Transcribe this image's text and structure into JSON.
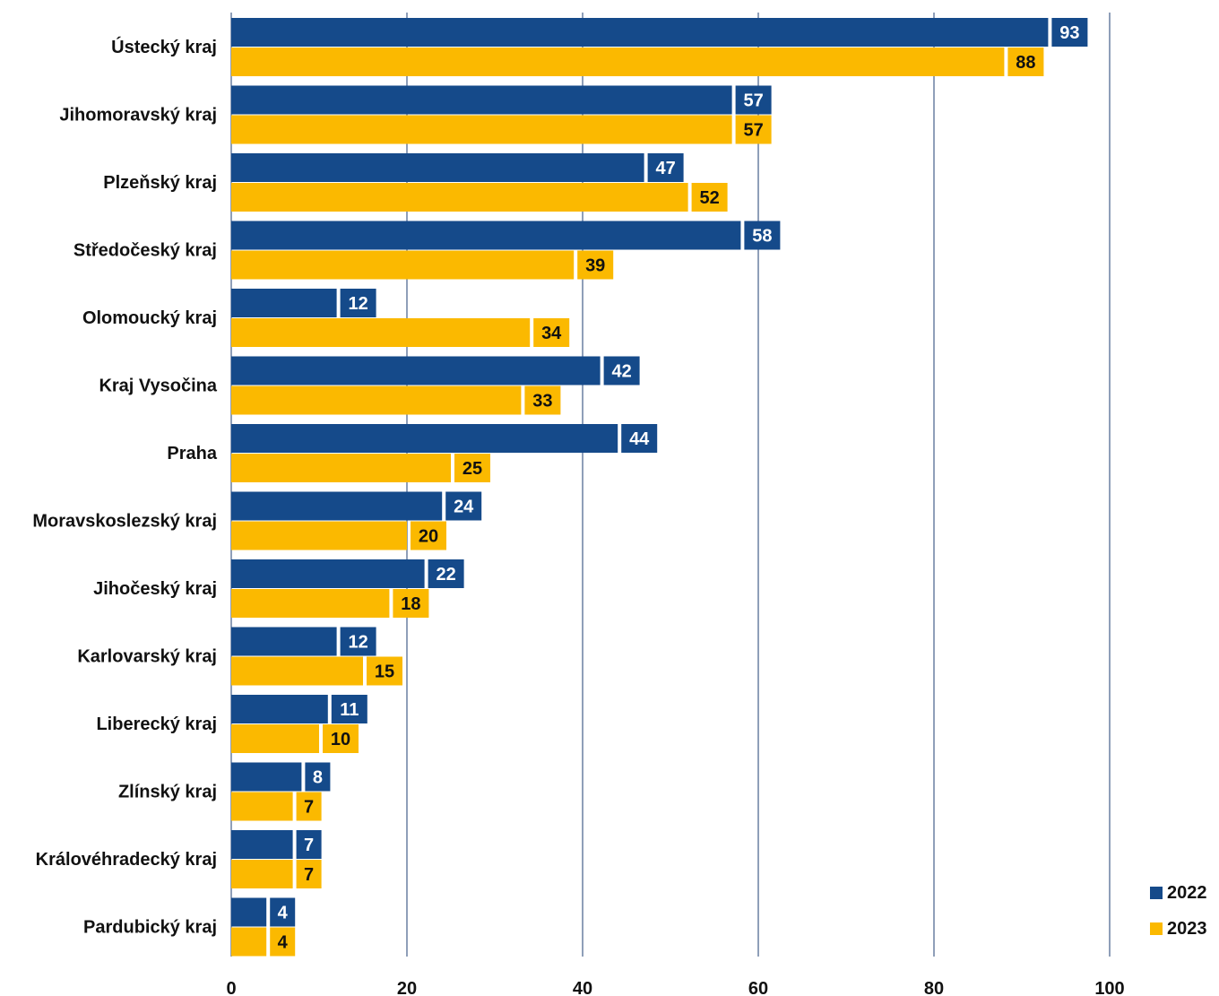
{
  "chart_data": {
    "type": "bar",
    "orientation": "horizontal",
    "title": "",
    "xlabel": "",
    "ylabel": "",
    "categories": [
      "Ústecký kraj",
      "Jihomoravský kraj",
      "Plzeňský kraj",
      "Středočeský kraj",
      "Olomoucký kraj",
      "Kraj Vysočina",
      "Praha",
      "Moravskoslezský kraj",
      "Jihočeský kraj",
      "Karlovarský kraj",
      "Liberecký kraj",
      "Zlínský kraj",
      "Královéhradecký kraj",
      "Pardubický kraj"
    ],
    "series": [
      {
        "name": "2022",
        "color": "#154a8a",
        "label_color": "#ffffff",
        "values": [
          93,
          57,
          47,
          58,
          12,
          42,
          44,
          24,
          22,
          12,
          11,
          8,
          7,
          4
        ]
      },
      {
        "name": "2023",
        "color": "#fbb900",
        "label_color": "#111111",
        "values": [
          88,
          57,
          52,
          39,
          34,
          33,
          25,
          20,
          18,
          15,
          10,
          7,
          7,
          4
        ]
      }
    ],
    "xlim": [
      0,
      100
    ],
    "xticks": [
      0,
      20,
      40,
      60,
      80,
      100
    ],
    "grid": "vertical",
    "grid_color": "#1f3f73",
    "legend_position": "bottom-right",
    "data_labels": true
  }
}
